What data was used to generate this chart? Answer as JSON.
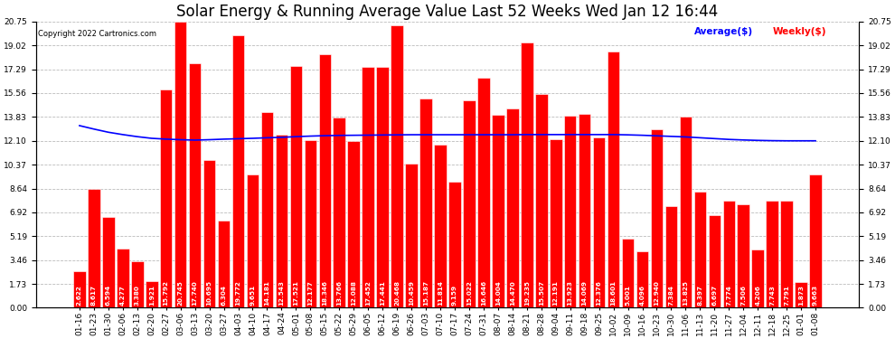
{
  "title": "Solar Energy & Running Average Value Last 52 Weeks Wed Jan 12 16:44",
  "copyright": "Copyright 2022 Cartronics.com",
  "legend_avg": "Average($)",
  "legend_weekly": "Weekly($)",
  "categories": [
    "01-16",
    "01-23",
    "01-30",
    "02-06",
    "02-13",
    "02-20",
    "02-27",
    "03-06",
    "03-13",
    "03-20",
    "03-27",
    "04-03",
    "04-10",
    "04-17",
    "04-24",
    "05-01",
    "05-08",
    "05-15",
    "05-22",
    "05-29",
    "06-05",
    "06-12",
    "06-19",
    "06-26",
    "07-03",
    "07-10",
    "07-17",
    "07-24",
    "07-31",
    "08-07",
    "08-14",
    "08-21",
    "08-28",
    "09-04",
    "09-11",
    "09-18",
    "09-25",
    "10-02",
    "10-09",
    "10-16",
    "10-23",
    "10-30",
    "11-06",
    "11-13",
    "11-20",
    "11-27",
    "12-04",
    "12-11",
    "12-18",
    "12-25",
    "01-01",
    "01-08"
  ],
  "weekly_values": [
    2.622,
    8.617,
    6.594,
    4.277,
    3.38,
    1.921,
    15.792,
    20.745,
    17.74,
    10.695,
    6.304,
    19.772,
    9.651,
    14.181,
    12.543,
    17.521,
    12.177,
    18.346,
    13.766,
    12.088,
    17.452,
    17.441,
    20.468,
    10.459,
    15.187,
    11.814,
    9.159,
    15.022,
    16.646,
    14.004,
    14.47,
    19.235,
    15.507,
    12.191,
    13.923,
    14.069,
    12.376,
    18.601,
    5.001,
    4.096,
    12.94,
    7.384,
    13.825,
    8.397,
    6.697,
    7.774,
    7.506,
    4.206,
    7.743,
    7.791,
    1.873,
    9.663
  ],
  "avg_values": [
    13.2,
    12.95,
    12.72,
    12.55,
    12.4,
    12.28,
    12.22,
    12.18,
    12.15,
    12.18,
    12.22,
    12.25,
    12.28,
    12.32,
    12.35,
    12.4,
    12.44,
    12.47,
    12.49,
    12.5,
    12.51,
    12.52,
    12.53,
    12.54,
    12.54,
    12.54,
    12.54,
    12.54,
    12.54,
    12.54,
    12.54,
    12.55,
    12.55,
    12.55,
    12.55,
    12.55,
    12.55,
    12.55,
    12.53,
    12.5,
    12.46,
    12.42,
    12.38,
    12.32,
    12.26,
    12.2,
    12.16,
    12.13,
    12.11,
    12.1,
    12.1,
    12.1
  ],
  "bar_color": "#ff0000",
  "bar_edge_color": "#ffffff",
  "avg_line_color": "#0000ff",
  "yticks": [
    0.0,
    1.73,
    3.46,
    5.19,
    6.92,
    8.64,
    10.37,
    12.1,
    13.83,
    15.56,
    17.29,
    19.02,
    20.75
  ],
  "ylim": [
    0.0,
    20.75
  ],
  "background_color": "#ffffff",
  "grid_color": "#bbbbbb",
  "title_fontsize": 12,
  "tick_fontsize": 6.5,
  "bar_label_fontsize": 5.2
}
